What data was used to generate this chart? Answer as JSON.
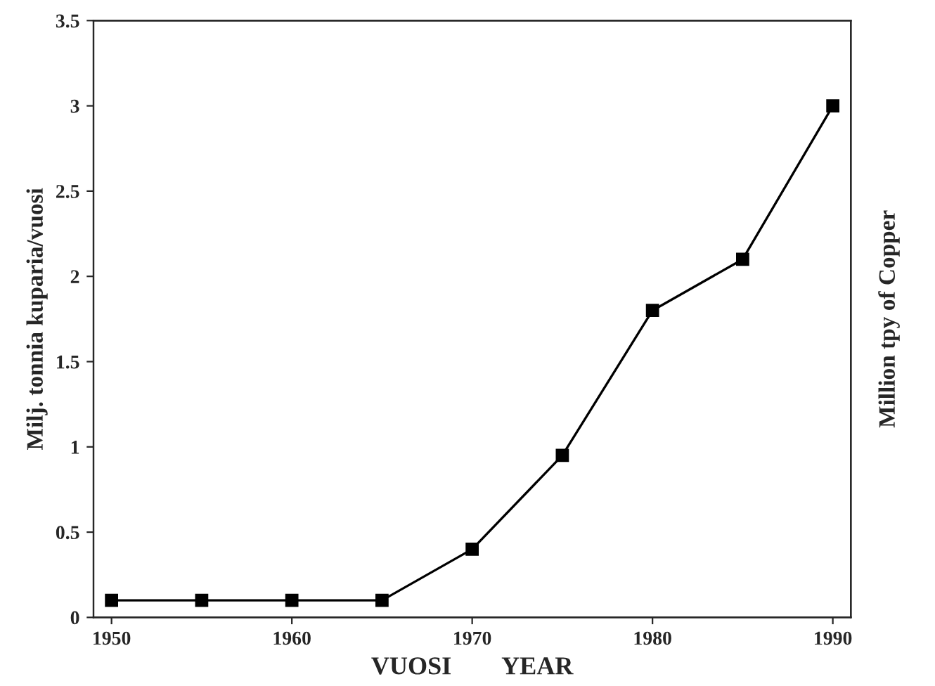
{
  "chart_data": {
    "type": "line",
    "xlabel": "VUOSI        YEAR",
    "ylabel": "Milj. tonnia kuparia/vuosi",
    "y2label": "Million tpy of Copper",
    "x": [
      1950,
      1955,
      1960,
      1965,
      1970,
      1975,
      1980,
      1985,
      1990
    ],
    "series": [
      {
        "color": "#000000",
        "values": [
          0.1,
          0.1,
          0.1,
          0.1,
          0.4,
          0.95,
          1.8,
          2.1,
          3.0
        ]
      }
    ],
    "xlim": [
      1949,
      1991
    ],
    "xticks": [
      1950,
      1960,
      1970,
      1980,
      1990
    ],
    "ylim": [
      0,
      3.5
    ],
    "yticks": [
      0,
      0.5,
      1,
      1.5,
      2,
      2.5,
      3,
      3.5
    ],
    "marker": "square",
    "line_style": "solid",
    "grid": false,
    "legend": false
  }
}
